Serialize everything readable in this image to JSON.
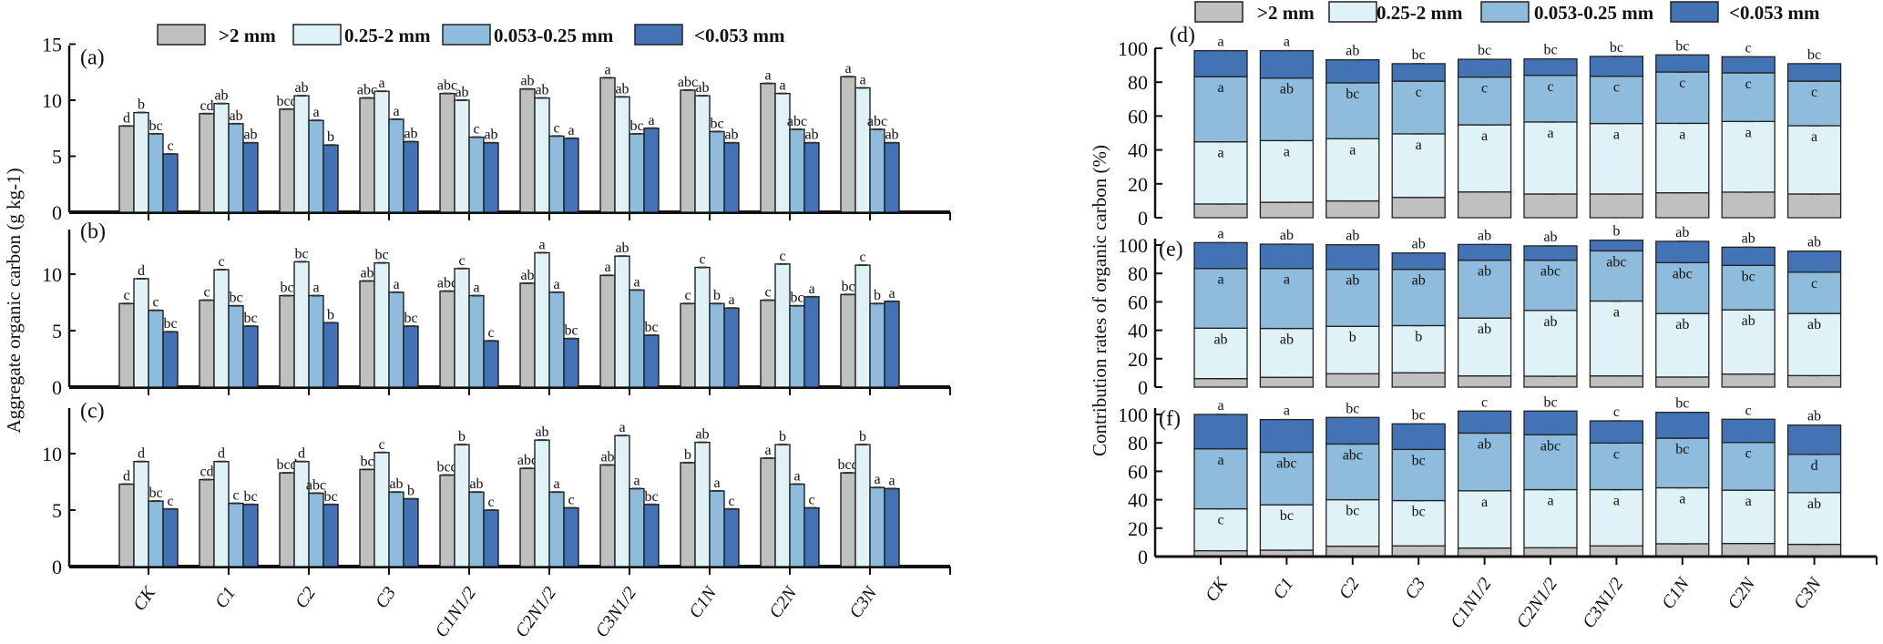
{
  "legend": {
    "items": [
      {
        "label": ">2 mm",
        "color": "#c0c0c0"
      },
      {
        "label": "0.25-2 mm",
        "color": "#dff2f8"
      },
      {
        "label": "0.053-0.25 mm",
        "color": "#8fbcdc"
      },
      {
        "label": "<0.053 mm",
        "color": "#4473b5"
      }
    ]
  },
  "chart_data": [
    {
      "id": "a",
      "type": "bar",
      "panel_label": "(a)",
      "ylabel": "Aggregate organic carbon (g kg-1)",
      "ylim": [
        0,
        15
      ],
      "yticks": [
        "0",
        "5",
        "10",
        "15"
      ],
      "categories": [
        "CK",
        "C1",
        "C2",
        "C3",
        "C1N1/2",
        "C2N1/2",
        "C3N1/2",
        "C1N",
        "C2N",
        "C3N"
      ],
      "series": [
        {
          "name": ">2 mm",
          "values": [
            7.7,
            8.8,
            9.2,
            10.2,
            10.6,
            11.0,
            12.0,
            10.9,
            11.5,
            12.1
          ],
          "letters": [
            "d",
            "cd",
            "bcd",
            "abc",
            "abc",
            "ab",
            "a",
            "abc",
            "a",
            "a"
          ]
        },
        {
          "name": "0.25-2 mm",
          "values": [
            8.9,
            9.7,
            10.4,
            10.8,
            10.0,
            10.2,
            10.3,
            10.4,
            10.6,
            11.1
          ],
          "letters": [
            "b",
            "ab",
            "ab",
            "a",
            "ab",
            "ab",
            "ab",
            "ab",
            "a",
            "a"
          ]
        },
        {
          "name": "0.053-0.25 mm",
          "values": [
            7.0,
            7.9,
            8.2,
            8.3,
            6.7,
            6.8,
            7.0,
            7.2,
            7.4,
            7.4
          ],
          "letters": [
            "bc",
            "ab",
            "a",
            "a",
            "c",
            "c",
            "bc",
            "bc",
            "abc",
            "abc"
          ]
        },
        {
          "name": "<0.053 mm",
          "values": [
            5.2,
            6.2,
            6.0,
            6.3,
            6.2,
            6.6,
            7.5,
            6.2,
            6.2,
            6.2
          ],
          "letters": [
            "c",
            "ab",
            "b",
            "ab",
            "ab",
            "a",
            "a",
            "ab",
            "ab",
            "ab"
          ]
        }
      ]
    },
    {
      "id": "b",
      "type": "bar",
      "panel_label": "(b)",
      "ylim": [
        0,
        15
      ],
      "yticks": [
        "0",
        "5",
        "10"
      ],
      "categories": [
        "CK",
        "C1",
        "C2",
        "C3",
        "C1N1/2",
        "C2N1/2",
        "C3N1/2",
        "C1N",
        "C2N",
        "C3N"
      ],
      "series": [
        {
          "name": ">2 mm",
          "values": [
            7.4,
            7.7,
            8.1,
            9.4,
            8.5,
            9.2,
            9.9,
            7.4,
            7.7,
            8.2
          ],
          "letters": [
            "c",
            "c",
            "bc",
            "ab",
            "abc",
            "ab",
            "a",
            "c",
            "c",
            "bc"
          ]
        },
        {
          "name": "0.25-2 mm",
          "values": [
            9.6,
            10.4,
            11.1,
            11.0,
            10.5,
            11.9,
            11.6,
            10.6,
            10.9,
            10.8
          ],
          "letters": [
            "d",
            "c",
            "bc",
            "bc",
            "c",
            "a",
            "ab",
            "c",
            "c",
            "c"
          ]
        },
        {
          "name": "0.053-0.25 mm",
          "values": [
            6.8,
            7.2,
            8.1,
            8.4,
            8.1,
            8.4,
            8.6,
            7.4,
            7.2,
            7.4
          ],
          "letters": [
            "c",
            "bc",
            "a",
            "a",
            "a",
            "a",
            "a",
            "b",
            "bc",
            "b"
          ]
        },
        {
          "name": "<0.053 mm",
          "values": [
            4.9,
            5.4,
            5.7,
            5.4,
            4.1,
            4.3,
            4.6,
            7.0,
            8.0,
            7.6
          ],
          "letters": [
            "bc",
            "bc",
            "b",
            "bc",
            "c",
            "bc",
            "bc",
            "a",
            "a",
            "a"
          ]
        }
      ]
    },
    {
      "id": "c",
      "type": "bar",
      "panel_label": "(c)",
      "ylim": [
        0,
        15
      ],
      "yticks": [
        "0",
        "5",
        "10"
      ],
      "categories": [
        "CK",
        "C1",
        "C2",
        "C3",
        "C1N1/2",
        "C2N1/2",
        "C3N1/2",
        "C1N",
        "C2N",
        "C3N"
      ],
      "series": [
        {
          "name": ">2 mm",
          "values": [
            7.3,
            7.7,
            8.3,
            8.6,
            8.1,
            8.7,
            9.0,
            9.2,
            9.6,
            8.3
          ],
          "letters": [
            "d",
            "cd",
            "bcd",
            "bc",
            "bcd",
            "abc",
            "ab",
            "b",
            "a",
            "bcd"
          ]
        },
        {
          "name": "0.25-2 mm",
          "values": [
            9.3,
            9.3,
            9.3,
            10.1,
            10.8,
            11.2,
            11.6,
            11.0,
            10.8,
            10.8
          ],
          "letters": [
            "d",
            "d",
            "d",
            "c",
            "b",
            "ab",
            "a",
            "ab",
            "b",
            "b"
          ]
        },
        {
          "name": "0.053-0.25 mm",
          "values": [
            5.8,
            5.6,
            6.5,
            6.6,
            6.6,
            6.6,
            6.9,
            6.7,
            7.3,
            7.0
          ],
          "letters": [
            "bc",
            "c",
            "abc",
            "ab",
            "ab",
            "a",
            "a",
            "a",
            "a",
            "a"
          ]
        },
        {
          "name": "<0.053 mm",
          "values": [
            5.1,
            5.5,
            5.5,
            6.0,
            5.0,
            5.2,
            5.5,
            5.1,
            5.2,
            6.9
          ],
          "letters": [
            "c",
            "bc",
            "bc",
            "b",
            "c",
            "c",
            "bc",
            "c",
            "c",
            "a"
          ]
        }
      ]
    },
    {
      "id": "d",
      "type": "stacked-bar",
      "panel_label": "(d)",
      "ylabel": "Contribution rates of  organic carbon (%)",
      "ylim": [
        0,
        100
      ],
      "yticks": [
        "0",
        "20",
        "40",
        "60",
        "80",
        "100"
      ],
      "categories": [
        "CK",
        "C1",
        "C2",
        "C3",
        "C1N1/2",
        "C2N1/2",
        "C3N1/2",
        "C1N",
        "C2N",
        "C3N"
      ],
      "series": [
        {
          "name": ">2 mm",
          "values": [
            8.1,
            9.1,
            9.9,
            12.0,
            15.2,
            14.0,
            14.0,
            14.7,
            15.1,
            14.0
          ],
          "letters": [
            "c",
            "c",
            "bc",
            "abc",
            "a",
            "ab",
            "ab",
            "a",
            "a",
            "ab"
          ]
        },
        {
          "name": "0.25-2 mm",
          "values": [
            36.7,
            36.4,
            36.7,
            37.5,
            39.6,
            42.5,
            41.6,
            41.0,
            41.7,
            40.3
          ],
          "letters": [
            "a",
            "a",
            "a",
            "a",
            "a",
            "a",
            "a",
            "a",
            "a",
            "a"
          ]
        },
        {
          "name": "0.053-0.25 mm",
          "values": [
            38.4,
            36.9,
            33.0,
            31.1,
            28.2,
            27.5,
            27.9,
            30.3,
            28.7,
            26.3
          ],
          "letters": [
            "a",
            "ab",
            "bc",
            "c",
            "c",
            "c",
            "c",
            "c",
            "c",
            "c"
          ]
        },
        {
          "name": "<0.053 mm",
          "values": [
            15.4,
            16.2,
            13.6,
            10.3,
            10.5,
            9.7,
            11.7,
            10.1,
            9.5,
            10.3
          ],
          "letters": [
            "a",
            "a",
            "ab",
            "bc",
            "bc",
            "bc",
            "bc",
            "bc",
            "c",
            "bc"
          ]
        }
      ]
    },
    {
      "id": "e",
      "type": "stacked-bar",
      "panel_label": "(e)",
      "ylim": [
        0,
        100
      ],
      "yticks": [
        "0",
        "20",
        "40",
        "60",
        "80",
        "100"
      ],
      "categories": [
        "CK",
        "C1",
        "C2",
        "C3",
        "C1N1/2",
        "C2N1/2",
        "C3N1/2",
        "C1N",
        "C2N",
        "C3N"
      ],
      "series": [
        {
          "name": ">2 mm",
          "values": [
            6.0,
            6.9,
            9.4,
            10.1,
            7.9,
            7.7,
            7.9,
            7.1,
            9.2,
            8.1
          ],
          "letters": [
            "a",
            "a",
            "a",
            "a",
            "a",
            "a",
            "a",
            "a",
            "a",
            "a"
          ]
        },
        {
          "name": "0.25-2 mm",
          "values": [
            35.5,
            34.4,
            33.4,
            33.2,
            40.7,
            46.3,
            52.7,
            44.7,
            45.2,
            43.7
          ],
          "letters": [
            "ab",
            "ab",
            "b",
            "b",
            "ab",
            "ab",
            "a",
            "ab",
            "ab",
            "ab"
          ]
        },
        {
          "name": "0.053-0.25 mm",
          "values": [
            42.0,
            42.2,
            40.1,
            39.6,
            40.7,
            35.3,
            35.3,
            35.8,
            31.3,
            29.1
          ],
          "letters": [
            "a",
            "a",
            "ab",
            "ab",
            "ab",
            "abc",
            "abc",
            "abc",
            "bc",
            "c"
          ]
        },
        {
          "name": "<0.053 mm",
          "values": [
            18.2,
            17.1,
            17.3,
            11.5,
            11.1,
            10.1,
            7.5,
            15.0,
            12.8,
            14.8
          ],
          "letters": [
            "a",
            "ab",
            "ab",
            "ab",
            "ab",
            "ab",
            "b",
            "ab",
            "ab",
            "ab"
          ]
        }
      ]
    },
    {
      "id": "f",
      "type": "stacked-bar",
      "panel_label": "(f)",
      "ylim": [
        0,
        100
      ],
      "yticks": [
        "0",
        "20",
        "40",
        "60",
        "80",
        "100"
      ],
      "categories": [
        "CK",
        "C1",
        "C2",
        "C3",
        "C1N1/2",
        "C2N1/2",
        "C3N1/2",
        "C1N",
        "C2N",
        "C3N"
      ],
      "series": [
        {
          "name": ">2 mm",
          "values": [
            4.1,
            4.5,
            7.3,
            7.5,
            6.0,
            6.2,
            7.5,
            9.0,
            9.2,
            8.6
          ],
          "letters": [
            "c",
            "c",
            "ab",
            "ab",
            "bc",
            "bc",
            "ab",
            "a",
            "a",
            "a"
          ]
        },
        {
          "name": "0.25-2 mm",
          "values": [
            29.5,
            31.9,
            32.7,
            31.9,
            40.3,
            40.9,
            39.6,
            39.4,
            37.5,
            36.4
          ],
          "letters": [
            "c",
            "bc",
            "bc",
            "bc",
            "a",
            "a",
            "a",
            "a",
            "a",
            "ab"
          ]
        },
        {
          "name": "0.053-0.25 mm",
          "values": [
            42.2,
            37.0,
            39.2,
            36.0,
            40.6,
            38.6,
            32.8,
            34.9,
            33.6,
            26.9
          ],
          "letters": [
            "a",
            "abc",
            "abc",
            "bc",
            "ab",
            "abc",
            "c",
            "bc",
            "c",
            "d"
          ]
        },
        {
          "name": "<0.053 mm",
          "values": [
            24.2,
            23.0,
            18.7,
            18.0,
            15.5,
            16.7,
            15.6,
            18.2,
            16.3,
            20.6
          ],
          "letters": [
            "a",
            "a",
            "bc",
            "bc",
            "c",
            "bc",
            "c",
            "bc",
            "c",
            "ab"
          ]
        }
      ]
    }
  ]
}
